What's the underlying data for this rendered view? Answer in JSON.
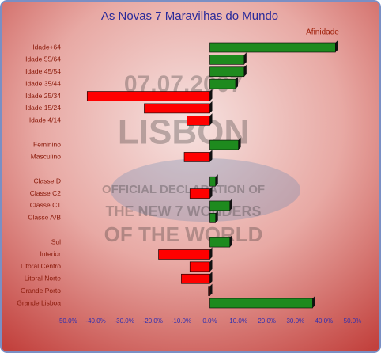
{
  "chart_data": {
    "type": "hbar",
    "title": "As Novas 7 Maravilhas do Mundo",
    "series_label": "Afinidade",
    "watermark": [
      "07.07.2007",
      "LISBON",
      "OFFICIAL DECLARATION OF",
      "THE NEW 7 WONDERS",
      "OF THE WORLD"
    ],
    "categories": [
      "Idade+64",
      "Idade 55/64",
      "Idade 45/54",
      "Idade 35/44",
      "Idade 25/34",
      "Idade 15/24",
      "Idade 4/14",
      null,
      "Feminino",
      "Masculino",
      null,
      "Classe D",
      "Classe C2",
      "Classe C1",
      "Classe A/B",
      null,
      "Sul",
      "Interior",
      "Litoral Centro",
      "Litoral Norte",
      "Grande Porto",
      "Grande Lisboa"
    ],
    "values": [
      44,
      12,
      12,
      9,
      -43,
      -23,
      -8,
      null,
      10,
      -9,
      null,
      2,
      -7,
      7,
      2,
      null,
      7,
      -18,
      -7,
      -10,
      -0.5,
      36
    ],
    "positive_color": "#1e8a1e",
    "negative_color": "#ff0000",
    "xlim": [
      -50,
      50
    ],
    "xticks": [
      {
        "value": -50,
        "label": "-50.0%"
      },
      {
        "value": -40,
        "label": "-40.0%"
      },
      {
        "value": -30,
        "label": "-30.0%"
      },
      {
        "value": -20,
        "label": "-20.0%"
      },
      {
        "value": -10,
        "label": "-10.0%"
      },
      {
        "value": 0,
        "label": "0.0%"
      },
      {
        "value": 10,
        "label": "10.0%"
      },
      {
        "value": 20,
        "label": "20.0%"
      },
      {
        "value": 30,
        "label": "30.0%"
      },
      {
        "value": 40,
        "label": "40.0%"
      },
      {
        "value": 50,
        "label": "50.0%"
      }
    ]
  }
}
